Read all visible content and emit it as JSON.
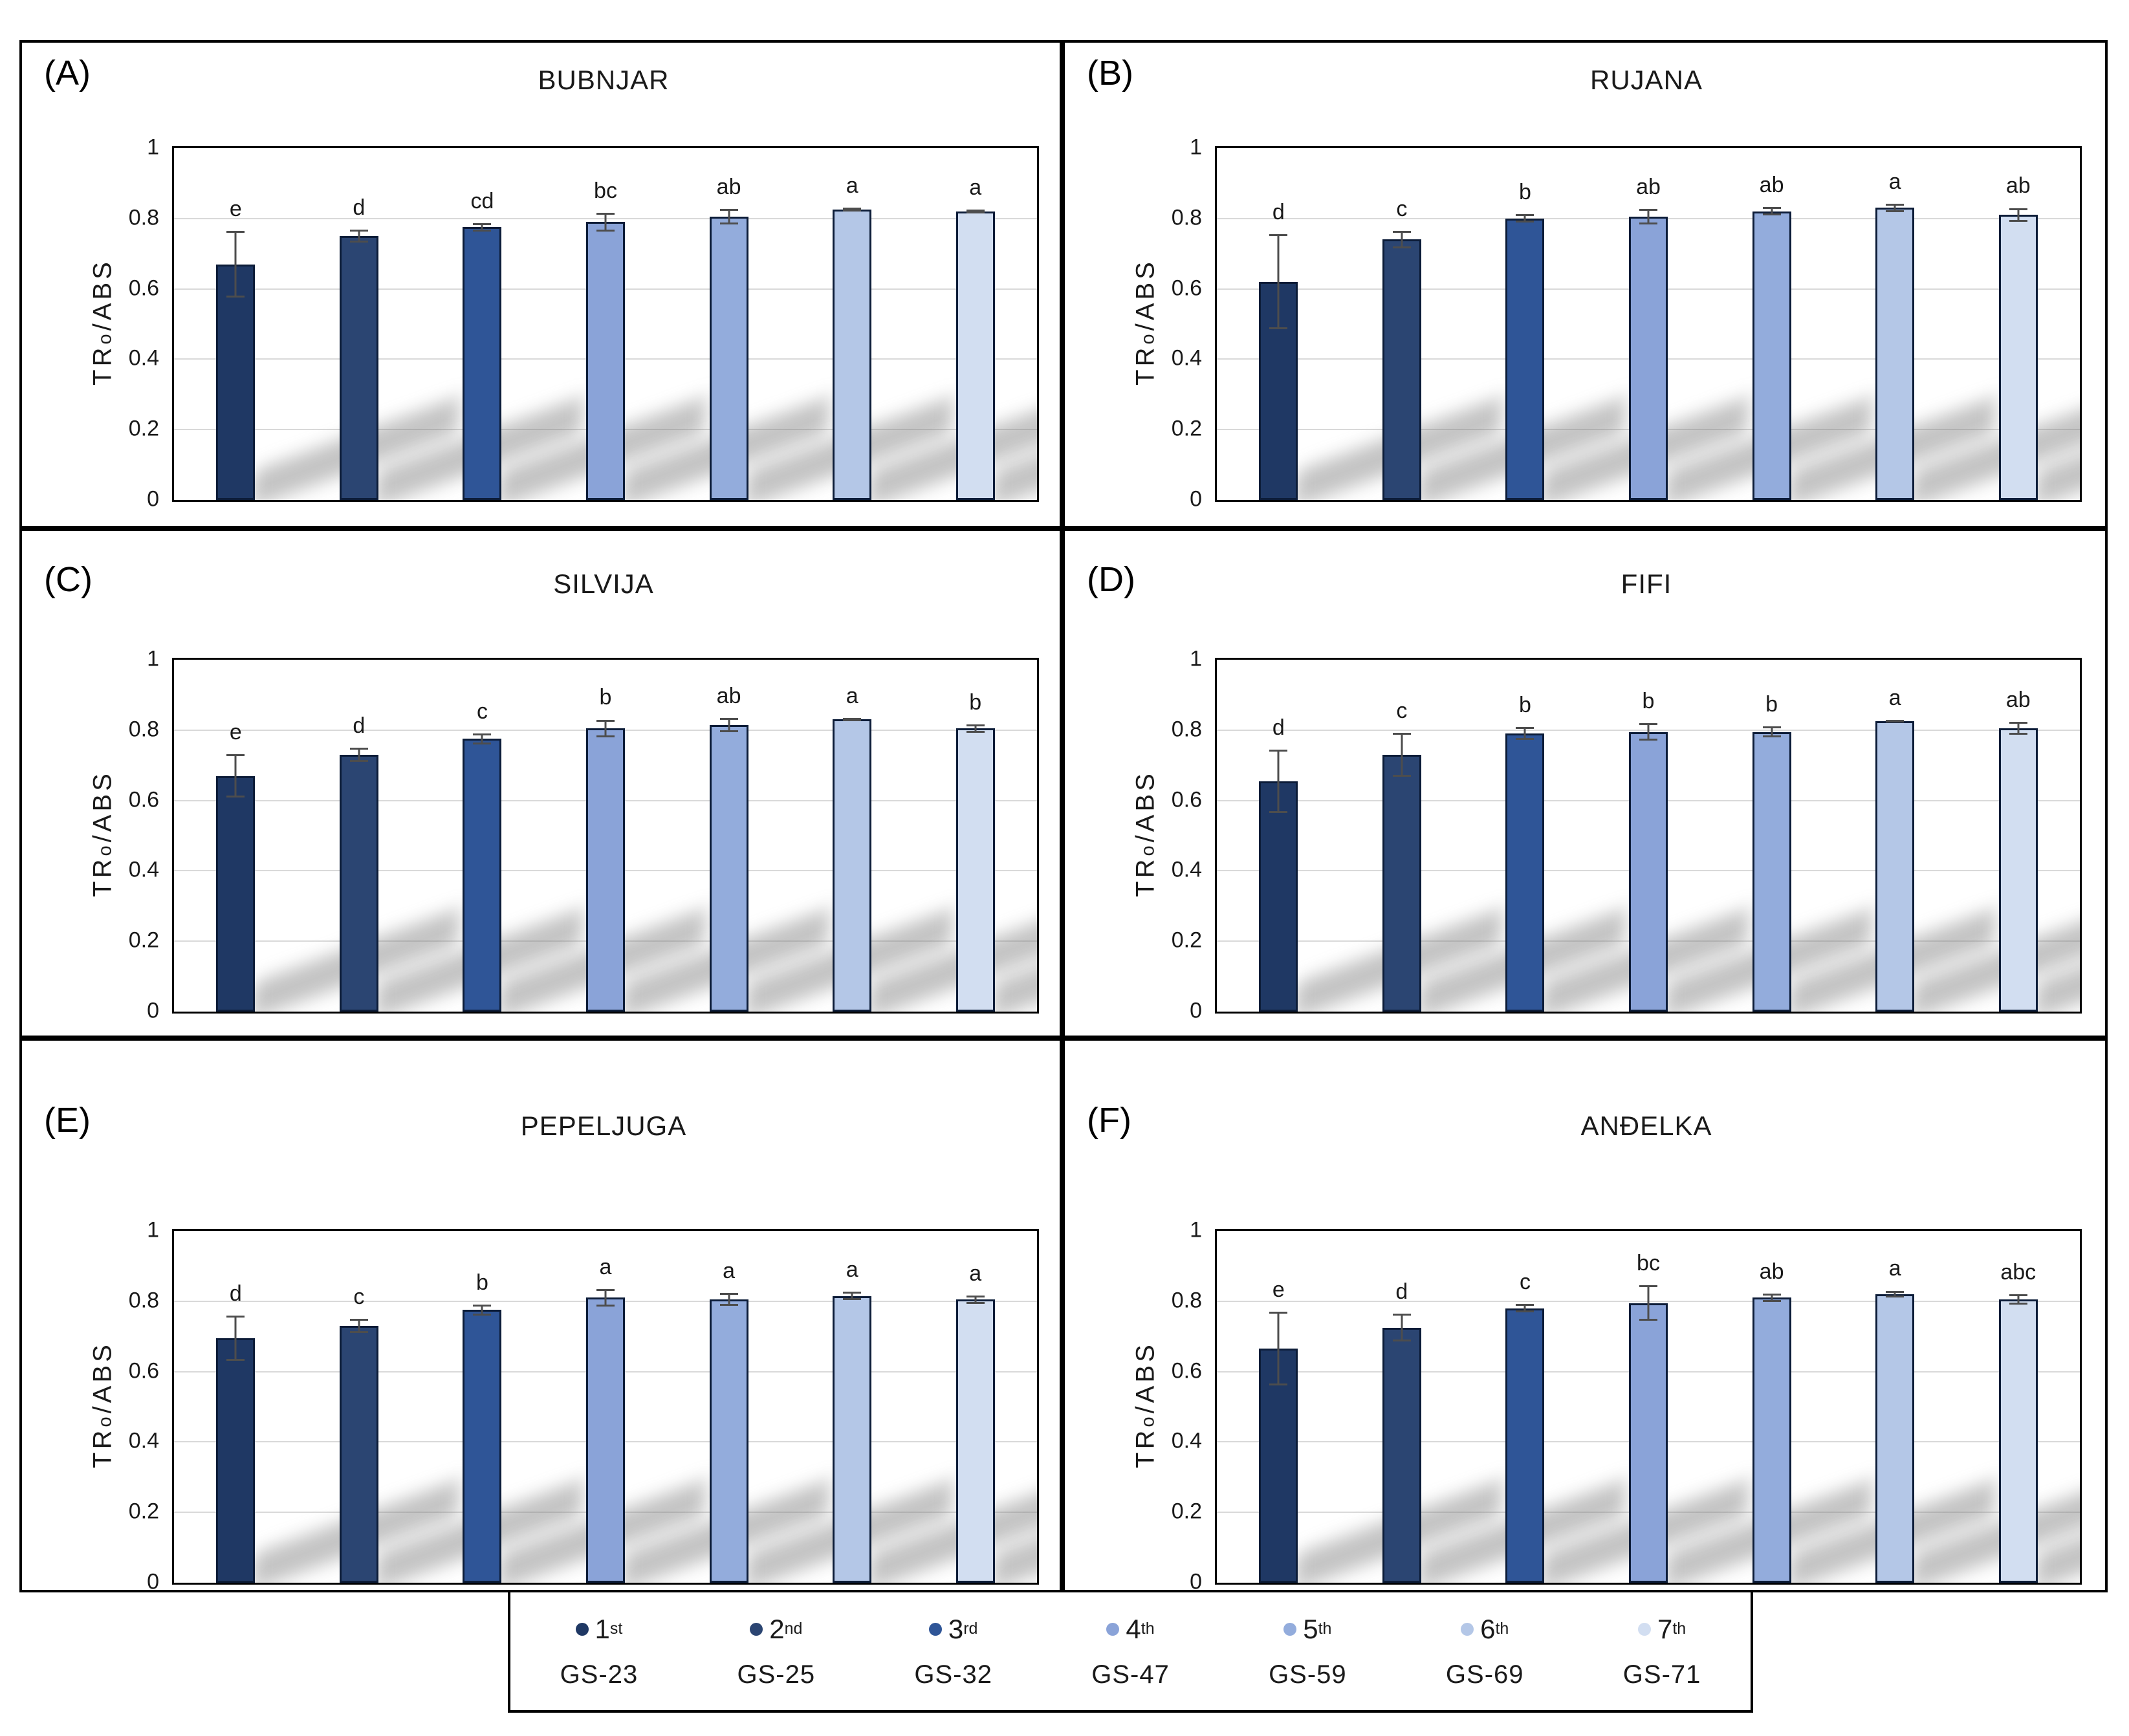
{
  "figure": {
    "ylabel": {
      "pre": "TR",
      "o": "o",
      "post": "/ABS"
    },
    "ytick_labels": [
      "1",
      "0.8",
      "0.6",
      "0.4",
      "0.2",
      "0"
    ],
    "ytick_values": [
      1,
      0.8,
      0.6,
      0.4,
      0.2,
      0
    ],
    "gridline_values": [
      0.8,
      0.6,
      0.4,
      0.2
    ],
    "colors": [
      "#1F3864",
      "#2B4572",
      "#2F5597",
      "#8AA3D8",
      "#93ACDC",
      "#B4C7E7",
      "#D2DEF1"
    ],
    "bar_border_color": "#0C1C38",
    "error_bar_color": "#4D4D4D"
  },
  "chart_data": [
    {
      "type": "bar",
      "panel_label": "(A)",
      "title": "BUBNJAR",
      "xlabel": "",
      "ylabel": "TRo/ABS",
      "ylim": [
        0,
        1
      ],
      "grid": true,
      "legend_position": "bottom",
      "categories": [
        "GS-23",
        "GS-25",
        "GS-32",
        "GS-47",
        "GS-59",
        "GS-69",
        "GS-71"
      ],
      "values": [
        0.67,
        0.75,
        0.775,
        0.79,
        0.805,
        0.825,
        0.82
      ],
      "errors": [
        0.095,
        0.018,
        0.012,
        0.027,
        0.022,
        0.006,
        0.006
      ],
      "sig_letters": [
        "e",
        "d",
        "cd",
        "bc",
        "ab",
        "a",
        "a"
      ]
    },
    {
      "type": "bar",
      "panel_label": "(B)",
      "title": "RUJANA",
      "xlabel": "",
      "ylabel": "TRo/ABS",
      "ylim": [
        0,
        1
      ],
      "grid": true,
      "legend_position": "bottom",
      "categories": [
        "GS-23",
        "GS-25",
        "GS-32",
        "GS-47",
        "GS-59",
        "GS-69",
        "GS-71"
      ],
      "values": [
        0.62,
        0.74,
        0.8,
        0.805,
        0.82,
        0.83,
        0.81
      ],
      "errors": [
        0.135,
        0.025,
        0.012,
        0.022,
        0.012,
        0.012,
        0.02
      ],
      "sig_letters": [
        "d",
        "c",
        "b",
        "ab",
        "ab",
        "a",
        "ab"
      ]
    },
    {
      "type": "bar",
      "panel_label": "(C)",
      "title": "SILVIJA",
      "xlabel": "",
      "ylabel": "TRo/ABS",
      "ylim": [
        0,
        1
      ],
      "grid": true,
      "legend_position": "bottom",
      "categories": [
        "GS-23",
        "GS-25",
        "GS-32",
        "GS-47",
        "GS-59",
        "GS-69",
        "GS-71"
      ],
      "values": [
        0.67,
        0.73,
        0.775,
        0.805,
        0.815,
        0.83,
        0.805
      ],
      "errors": [
        0.062,
        0.02,
        0.015,
        0.025,
        0.02,
        0.005,
        0.012
      ],
      "sig_letters": [
        "e",
        "d",
        "c",
        "b",
        "ab",
        "a",
        "b"
      ]
    },
    {
      "type": "bar",
      "panel_label": "(D)",
      "title": "FIFI",
      "xlabel": "",
      "ylabel": "TRo/ABS",
      "ylim": [
        0,
        1
      ],
      "grid": true,
      "legend_position": "bottom",
      "categories": [
        "GS-23",
        "GS-25",
        "GS-32",
        "GS-47",
        "GS-59",
        "GS-69",
        "GS-71"
      ],
      "values": [
        0.655,
        0.73,
        0.79,
        0.795,
        0.795,
        0.825,
        0.805
      ],
      "errors": [
        0.09,
        0.063,
        0.018,
        0.025,
        0.015,
        0.004,
        0.018
      ],
      "sig_letters": [
        "d",
        "c",
        "b",
        "b",
        "b",
        "a",
        "ab"
      ]
    },
    {
      "type": "bar",
      "panel_label": "(E)",
      "title": "PEPELJUGA",
      "xlabel": "",
      "ylabel": "TRo/ABS",
      "ylim": [
        0,
        1
      ],
      "grid": true,
      "legend_position": "bottom",
      "categories": [
        "GS-23",
        "GS-25",
        "GS-32",
        "GS-47",
        "GS-59",
        "GS-69",
        "GS-71"
      ],
      "values": [
        0.695,
        0.73,
        0.775,
        0.81,
        0.805,
        0.815,
        0.805
      ],
      "errors": [
        0.065,
        0.02,
        0.015,
        0.025,
        0.018,
        0.012,
        0.012
      ],
      "sig_letters": [
        "d",
        "c",
        "b",
        "a",
        "a",
        "a",
        "a"
      ]
    },
    {
      "type": "bar",
      "panel_label": "(F)",
      "title": "ANĐELKA",
      "xlabel": "",
      "ylabel": "TRo/ABS",
      "ylim": [
        0,
        1
      ],
      "grid": true,
      "legend_position": "bottom",
      "categories": [
        "GS-23",
        "GS-25",
        "GS-32",
        "GS-47",
        "GS-59",
        "GS-69",
        "GS-71"
      ],
      "values": [
        0.665,
        0.725,
        0.78,
        0.795,
        0.81,
        0.82,
        0.805
      ],
      "errors": [
        0.105,
        0.04,
        0.012,
        0.05,
        0.012,
        0.01,
        0.015
      ],
      "sig_letters": [
        "e",
        "d",
        "c",
        "bc",
        "ab",
        "a",
        "abc"
      ]
    }
  ],
  "legend": {
    "items": [
      {
        "ordinal": "1",
        "suffix": "st",
        "gs": "GS-23"
      },
      {
        "ordinal": "2",
        "suffix": "nd",
        "gs": "GS-25"
      },
      {
        "ordinal": "3",
        "suffix": "rd",
        "gs": "GS-32"
      },
      {
        "ordinal": "4",
        "suffix": "th",
        "gs": "GS-47"
      },
      {
        "ordinal": "5",
        "suffix": "th",
        "gs": "GS-59"
      },
      {
        "ordinal": "6",
        "suffix": "th",
        "gs": "GS-69"
      },
      {
        "ordinal": "7",
        "suffix": "th",
        "gs": "GS-71"
      }
    ]
  }
}
